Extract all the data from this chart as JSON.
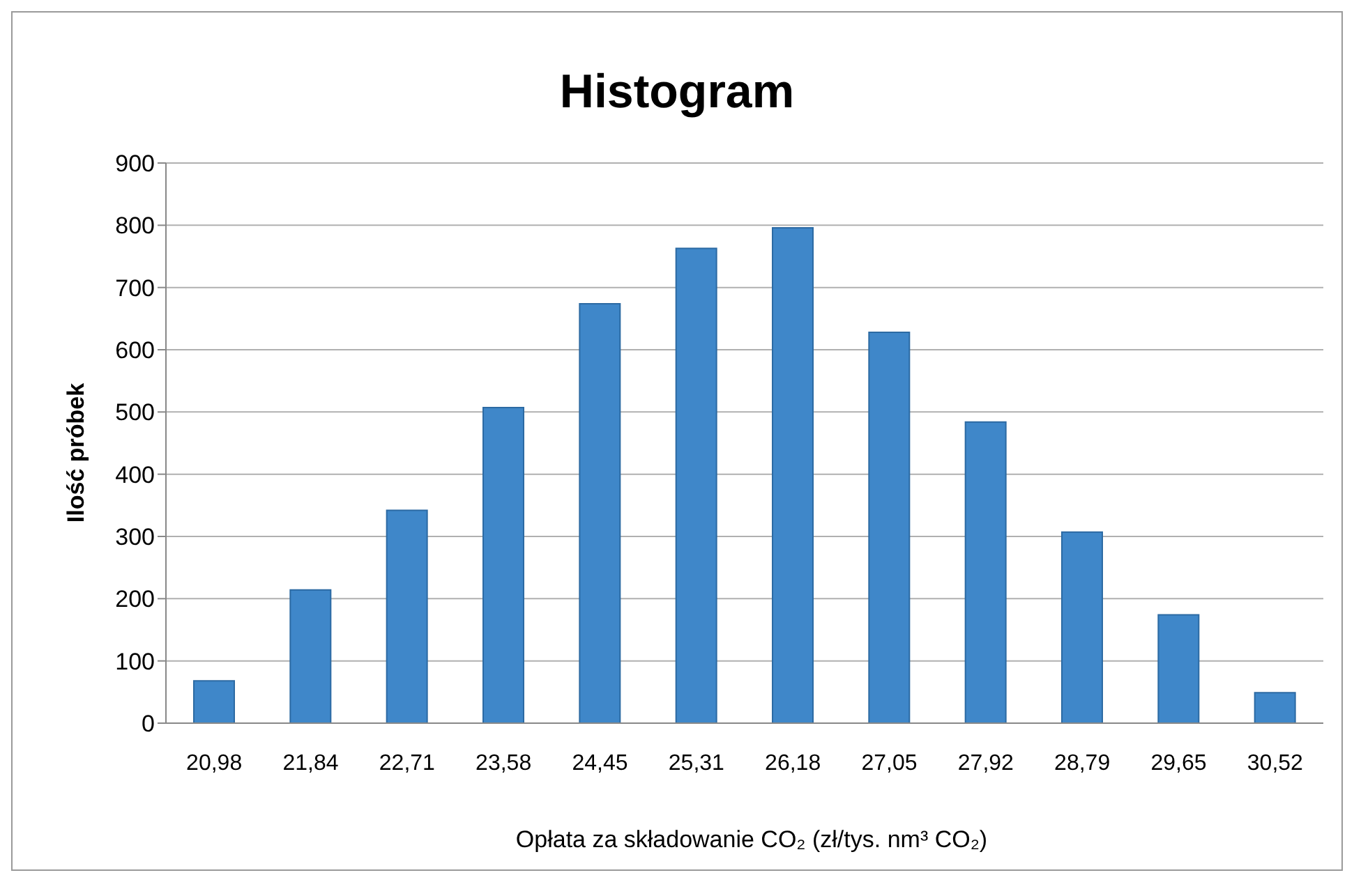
{
  "chart_data": {
    "type": "bar",
    "title": "Histogram",
    "xlabel": "Opłata za składowanie CO₂ (zł/tys. nm³ CO₂)",
    "ylabel": "Ilość próbek",
    "categories": [
      "20,98",
      "21,84",
      "22,71",
      "23,58",
      "24,45",
      "25,31",
      "26,18",
      "27,05",
      "27,92",
      "28,79",
      "29,65",
      "30,52"
    ],
    "values": [
      68,
      214,
      342,
      507,
      674,
      763,
      796,
      628,
      484,
      307,
      174,
      49
    ],
    "color": "#3f87c9",
    "ylim": [
      0,
      900
    ],
    "yticks": [
      0,
      100,
      200,
      300,
      400,
      500,
      600,
      700,
      800,
      900
    ],
    "grid": "y"
  }
}
